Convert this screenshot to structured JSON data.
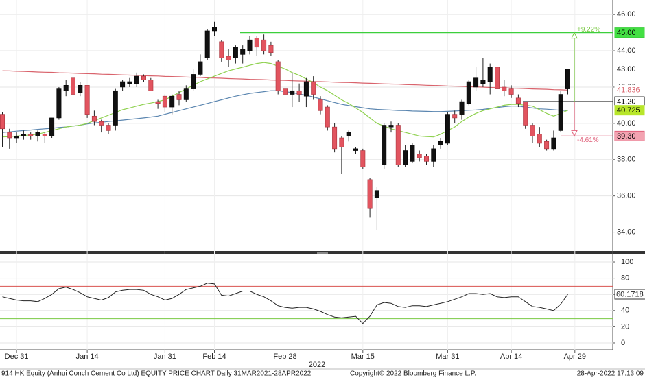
{
  "chart_data": {
    "type": "candlestick",
    "categories": [
      null,
      null,
      "Dec 31",
      null,
      null,
      null,
      null,
      null,
      null,
      null,
      null,
      null,
      "Jan 14",
      null,
      null,
      null,
      null,
      null,
      null,
      null,
      null,
      null,
      null,
      "Jan 31",
      null,
      null,
      null,
      null,
      null,
      null,
      "Feb 14",
      null,
      null,
      null,
      null,
      null,
      null,
      null,
      null,
      null,
      "Feb 28",
      null,
      null,
      null,
      null,
      null,
      null,
      null,
      null,
      null,
      null,
      "Mar 15",
      null,
      null,
      null,
      null,
      null,
      null,
      null,
      null,
      null,
      null,
      null,
      "Mar 31",
      null,
      null,
      null,
      null,
      null,
      null,
      null,
      null,
      "Apr 14",
      null,
      null,
      null,
      null,
      null,
      null,
      null,
      null,
      "Apr 29"
    ],
    "x_group_label": "2022",
    "open": [
      40.5,
      39.5,
      39.2,
      39.3,
      39.4,
      39.3,
      39.4,
      39.3,
      40.3,
      41.8,
      42.5,
      41.7,
      42.1,
      40.4,
      40.1,
      39.9,
      39.9,
      42.0,
      42.2,
      42.2,
      42.6,
      42.4,
      41.2,
      41.5,
      40.9,
      41.6,
      41.3,
      41.9,
      42.7,
      43.6,
      45.1,
      44.5,
      43.7,
      43.6,
      43.8,
      44.0,
      44.7,
      44.6,
      44.3,
      43.4,
      41.9,
      41.6,
      41.8,
      41.5,
      42.3,
      41.3,
      40.9,
      39.8,
      39.2,
      39.3,
      38.5,
      38.5,
      36.9,
      35.9,
      37.7,
      39.8,
      39.9,
      37.7,
      37.9,
      38.3,
      38.2,
      37.9,
      38.8,
      38.9,
      40.5,
      40.5,
      41.1,
      42.0,
      42.2,
      42.3,
      43.1,
      42.0,
      41.9,
      41.4,
      41.2,
      39.9,
      39.4,
      39.0,
      38.6,
      39.6,
      41.9,
      null
    ],
    "high": [
      40.6,
      39.7,
      39.5,
      39.6,
      39.5,
      39.6,
      39.5,
      40.3,
      42.0,
      42.4,
      43.0,
      42.3,
      42.1,
      40.7,
      40.2,
      40.0,
      41.9,
      42.4,
      42.5,
      42.8,
      42.7,
      42.5,
      41.3,
      41.6,
      41.6,
      41.8,
      42.1,
      43.0,
      43.8,
      45.2,
      45.6,
      44.6,
      44.1,
      44.3,
      44.3,
      44.8,
      44.8,
      44.9,
      44.5,
      43.5,
      42.1,
      42.8,
      42.2,
      42.5,
      42.6,
      41.5,
      41.0,
      40.0,
      39.3,
      39.6,
      38.7,
      38.6,
      37.0,
      36.5,
      40.0,
      40.1,
      40.0,
      38.8,
      38.9,
      38.5,
      38.3,
      38.8,
      39.2,
      40.6,
      40.7,
      41.3,
      42.4,
      43.1,
      43.6,
      43.3,
      43.2,
      42.4,
      42.1,
      41.6,
      41.2,
      40.0,
      39.8,
      39.1,
      39.6,
      41.8,
      43.0,
      null
    ],
    "low": [
      38.7,
      38.6,
      38.9,
      39.1,
      39.1,
      39.0,
      38.9,
      39.2,
      40.2,
      41.5,
      41.5,
      41.5,
      40.3,
      39.9,
      39.5,
      39.4,
      39.6,
      41.8,
      42.0,
      42.0,
      42.3,
      41.8,
      40.8,
      40.6,
      40.5,
      41.0,
      41.2,
      41.8,
      42.6,
      43.5,
      44.8,
      43.4,
      43.1,
      43.3,
      43.3,
      43.8,
      43.7,
      43.8,
      43.7,
      41.6,
      41.0,
      40.9,
      41.2,
      40.9,
      41.3,
      40.5,
      39.6,
      38.4,
      37.2,
      39.0,
      38.3,
      37.5,
      34.8,
      34.1,
      37.5,
      39.5,
      37.6,
      37.6,
      37.8,
      37.9,
      37.7,
      37.6,
      38.6,
      38.8,
      40.0,
      40.2,
      41.0,
      41.8,
      42.0,
      41.6,
      41.8,
      41.5,
      41.4,
      40.9,
      39.7,
      38.9,
      38.7,
      38.5,
      38.5,
      39.5,
      41.6,
      null
    ],
    "close": [
      39.7,
      39.2,
      39.3,
      39.4,
      39.3,
      39.5,
      39.3,
      40.3,
      41.9,
      42.1,
      41.6,
      42.1,
      40.5,
      40.1,
      39.9,
      39.6,
      41.8,
      42.3,
      42.3,
      42.6,
      42.4,
      41.8,
      41.1,
      40.9,
      41.5,
      41.3,
      41.9,
      42.7,
      43.4,
      45.1,
      45.3,
      43.6,
      43.5,
      44.2,
      44.1,
      44.6,
      44.2,
      44.0,
      43.9,
      41.8,
      41.6,
      41.8,
      41.6,
      42.3,
      41.6,
      40.7,
      39.8,
      38.6,
      38.7,
      39.5,
      38.6,
      37.6,
      35.3,
      36.3,
      39.9,
      39.9,
      37.7,
      38.5,
      38.8,
      38.1,
      37.9,
      38.6,
      39.0,
      40.5,
      40.3,
      41.2,
      42.3,
      42.5,
      42.4,
      43.1,
      41.9,
      41.8,
      41.6,
      41.1,
      39.9,
      39.3,
      38.9,
      38.6,
      39.2,
      41.6,
      43.0,
      null
    ],
    "up_color": "#111111",
    "down_color": "#e2545f",
    "series": [
      {
        "color": "#d9636c",
        "values": [
          42.9,
          42.89,
          42.87,
          42.86,
          42.85,
          42.83,
          42.82,
          42.81,
          42.79,
          42.78,
          42.77,
          42.75,
          42.74,
          42.73,
          42.71,
          42.7,
          42.69,
          42.67,
          42.66,
          42.65,
          42.63,
          42.62,
          42.61,
          42.59,
          42.58,
          42.57,
          42.55,
          42.54,
          42.53,
          42.51,
          42.5,
          42.49,
          42.47,
          42.46,
          42.45,
          42.43,
          42.42,
          42.41,
          42.39,
          42.38,
          42.37,
          42.35,
          42.34,
          42.33,
          42.31,
          42.3,
          42.29,
          42.27,
          42.26,
          42.25,
          42.24,
          42.22,
          42.21,
          42.2,
          42.18,
          42.17,
          42.16,
          42.14,
          42.13,
          42.12,
          42.1,
          42.09,
          42.08,
          42.06,
          42.05,
          42.04,
          42.02,
          42.01,
          42.0,
          41.98,
          41.97,
          41.96,
          41.94,
          41.93,
          41.92,
          41.9,
          41.89,
          41.88,
          41.86,
          41.85,
          41.836,
          null
        ]
      },
      {
        "color": "#5b86b0",
        "values": [
          39.5,
          39.53,
          39.57,
          39.6,
          39.63,
          39.67,
          39.7,
          39.73,
          39.77,
          39.8,
          39.85,
          39.9,
          39.97,
          40.02,
          40.06,
          40.1,
          40.14,
          40.18,
          40.22,
          40.26,
          40.3,
          40.35,
          40.4,
          40.5,
          40.6,
          40.7,
          40.8,
          40.9,
          41.0,
          41.1,
          41.2,
          41.3,
          41.4,
          41.5,
          41.58,
          41.65,
          41.7,
          41.75,
          41.8,
          41.8,
          41.75,
          41.7,
          41.62,
          41.55,
          41.45,
          41.35,
          41.25,
          41.15,
          41.05,
          40.98,
          40.92,
          40.86,
          40.8,
          40.77,
          40.75,
          40.73,
          40.71,
          40.7,
          40.68,
          40.67,
          40.66,
          40.65,
          40.65,
          40.66,
          40.68,
          40.7,
          40.72,
          40.74,
          40.77,
          40.82,
          40.87,
          40.92,
          40.95,
          40.95,
          40.9,
          40.85,
          40.8,
          40.78,
          40.75,
          40.72,
          40.7,
          null
        ]
      },
      {
        "color": "#8fd14f",
        "values": [
          39.25,
          39.27,
          39.3,
          39.33,
          39.36,
          39.4,
          39.5,
          39.6,
          39.7,
          39.8,
          39.85,
          39.9,
          40.0,
          40.15,
          40.3,
          40.45,
          40.6,
          40.75,
          40.85,
          40.95,
          41.05,
          41.12,
          41.2,
          41.3,
          41.5,
          41.7,
          41.9,
          42.1,
          42.3,
          42.45,
          42.6,
          42.75,
          42.9,
          43.0,
          43.1,
          43.2,
          43.3,
          43.35,
          43.3,
          43.15,
          43.0,
          42.8,
          42.65,
          42.45,
          42.25,
          42.0,
          41.8,
          41.55,
          41.3,
          41.1,
          40.85,
          40.6,
          40.3,
          40.0,
          39.85,
          39.7,
          39.6,
          39.5,
          39.4,
          39.3,
          39.27,
          39.25,
          39.4,
          39.6,
          39.8,
          40.1,
          40.35,
          40.55,
          40.7,
          40.8,
          40.9,
          41.0,
          41.05,
          41.05,
          41.0,
          40.95,
          40.75,
          40.55,
          40.4,
          40.55,
          40.725,
          null
        ]
      }
    ],
    "last_price": {
      "value": 43,
      "label": "43.00"
    },
    "levels": [
      {
        "value": 45,
        "label": "45.00",
        "color": "#3ccf3c"
      },
      {
        "value": 41.2,
        "label": "41.20",
        "color": "#000000"
      },
      {
        "value": 39.3,
        "label": "39.30",
        "color": "#e0607a"
      }
    ],
    "annotations": [
      {
        "text": "+9.22%",
        "color": "#7ac943"
      },
      {
        "text": "-4.61%",
        "color": "#e0607a"
      }
    ],
    "ylim": [
      33,
      46.8
    ],
    "yticks": [
      {
        "value": 34,
        "label": "34.00"
      },
      {
        "value": 36,
        "label": "36.00"
      },
      {
        "value": 38,
        "label": "38.00"
      },
      {
        "value": 40,
        "label": "40.00"
      },
      {
        "value": 42,
        "label": "42.00"
      },
      {
        "value": 44,
        "label": "44.00"
      },
      {
        "value": 46,
        "label": "46.00"
      }
    ],
    "grid": true,
    "indicator": {
      "type": "line",
      "color": "#222222",
      "values": [
        57,
        55,
        53,
        52,
        52,
        51,
        55,
        60,
        67,
        69,
        66,
        62,
        57,
        55,
        53,
        56,
        63,
        65,
        66,
        66,
        65,
        60,
        57,
        53,
        55,
        60,
        66,
        68,
        70,
        74,
        73,
        59,
        58,
        61,
        64,
        64,
        60,
        57,
        52,
        46,
        44,
        43,
        44,
        44,
        42,
        39,
        35,
        32,
        31,
        32,
        33,
        24,
        33,
        47,
        50,
        49,
        45,
        44,
        46,
        46,
        45,
        47,
        49,
        51,
        54,
        57,
        61,
        61,
        60,
        61,
        57,
        56,
        57,
        57,
        51,
        45,
        44,
        42,
        40,
        48,
        60.1718,
        null
      ],
      "bands": [
        {
          "value": 70,
          "color": "#d9534f"
        },
        {
          "value": 30,
          "color": "#7ac943"
        }
      ],
      "ylim": [
        -8.5,
        108.5
      ],
      "yticks": [
        0,
        20,
        40,
        60,
        80,
        100
      ]
    },
    "footer": {
      "left": "914 HK Equity (Anhui Conch Cement Co Ltd) EQUITY PRICE CHART  Daily 31MAR2021-28APR2022",
      "center": "Copyright© 2022 Bloomberg Finance L.P.",
      "right": "28-Apr-2022 17:13:09"
    }
  }
}
